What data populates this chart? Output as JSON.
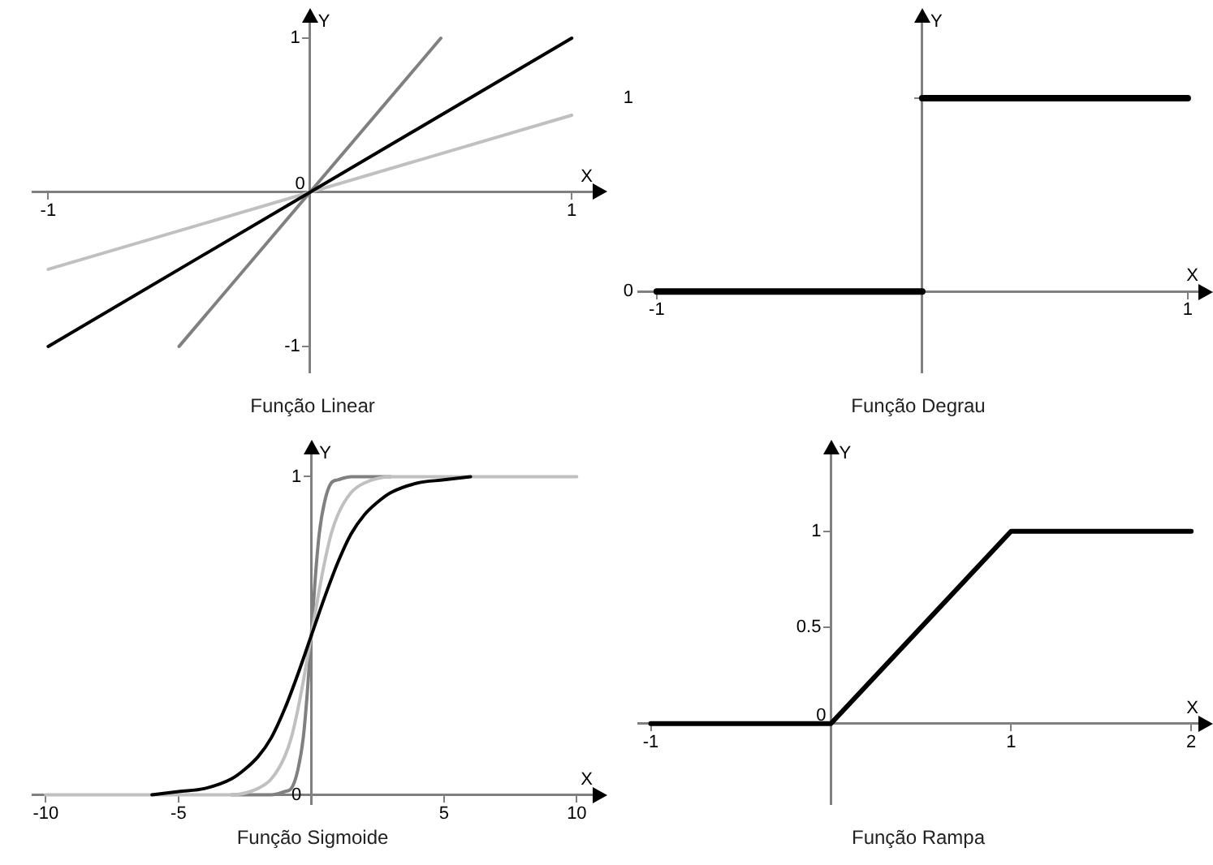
{
  "chart_data": [
    {
      "type": "line",
      "title": "Função Linear",
      "xlabel": "X",
      "ylabel": "Y",
      "xlim": [
        -1.06,
        1.08
      ],
      "ylim": [
        -1.17,
        1.1
      ],
      "xticks": [
        -1,
        1
      ],
      "yticks": [
        -1,
        0,
        1
      ],
      "marker": "none",
      "grid": false,
      "series": [
        {
          "color": "#000000",
          "x": [
            -1,
            1
          ],
          "values": [
            -1,
            1
          ]
        },
        {
          "color": "#808080",
          "x": [
            -0.5,
            0.5
          ],
          "values": [
            -1,
            1
          ]
        },
        {
          "color": "#c0c0c0",
          "x": [
            -1,
            1
          ],
          "values": [
            -0.5,
            0.5
          ]
        }
      ]
    },
    {
      "type": "line",
      "title": "Função Degrau",
      "xlabel": "X",
      "ylabel": "Y",
      "xlim": [
        -1.07,
        1.04
      ],
      "ylim": [
        -0.42,
        1.39
      ],
      "xticks": [
        -1,
        1
      ],
      "yticks": [
        0,
        1
      ],
      "marker": "none",
      "grid": false,
      "series": [
        {
          "color": "#000000",
          "x": [
            -1,
            0
          ],
          "values": [
            0,
            0
          ]
        },
        {
          "color": "#000000",
          "x": [
            0,
            1
          ],
          "values": [
            1,
            1
          ]
        }
      ]
    },
    {
      "type": "line",
      "title": "Função Sigmoide",
      "xlabel": "X",
      "ylabel": "Y",
      "xlim": [
        -10.5,
        10.6
      ],
      "ylim": [
        -0.03,
        1.07
      ],
      "xticks": [
        -10,
        -5,
        5,
        10
      ],
      "yticks": [
        0,
        1
      ],
      "marker": "none",
      "grid": false,
      "series": [
        {
          "color": "#000000",
          "x": [
            -6,
            -5,
            -4,
            -3,
            -2.5,
            -2,
            -1.5,
            -1,
            -0.5,
            0,
            0.5,
            1,
            1.5,
            2,
            2.5,
            3,
            4,
            5,
            6
          ],
          "values": [
            0,
            0.01,
            0.02,
            0.05,
            0.08,
            0.12,
            0.18,
            0.27,
            0.38,
            0.5,
            0.62,
            0.73,
            0.82,
            0.88,
            0.92,
            0.95,
            0.98,
            0.99,
            1
          ]
        },
        {
          "color": "#c0c0c0",
          "x": [
            -10,
            -5,
            -3,
            -2,
            -1.5,
            -1,
            -0.75,
            -0.5,
            -0.25,
            0,
            0.25,
            0.5,
            0.75,
            1,
            1.5,
            2,
            3,
            5,
            10
          ],
          "values": [
            0,
            0,
            0,
            0.02,
            0.05,
            0.12,
            0.18,
            0.27,
            0.38,
            0.5,
            0.62,
            0.73,
            0.82,
            0.88,
            0.95,
            0.98,
            1,
            1,
            1
          ]
        },
        {
          "color": "#808080",
          "x": [
            -3,
            -1.5,
            -1,
            -0.75,
            -0.5,
            -0.3,
            -0.15,
            0,
            0.15,
            0.3,
            0.5,
            0.75,
            1,
            1.5,
            3
          ],
          "values": [
            0,
            0,
            0.01,
            0.02,
            0.08,
            0.18,
            0.32,
            0.5,
            0.68,
            0.82,
            0.92,
            0.98,
            0.99,
            1,
            1
          ]
        }
      ]
    },
    {
      "type": "line",
      "title": "Função Rampa",
      "xlabel": "X",
      "ylabel": "Y",
      "xlim": [
        -1.07,
        2.04
      ],
      "ylim": [
        -0.42,
        1.4
      ],
      "xticks": [
        -1,
        1,
        2
      ],
      "yticks": [
        0,
        0.5,
        1
      ],
      "marker": "none",
      "grid": false,
      "series": [
        {
          "color": "#000000",
          "x": [
            -1,
            0,
            1,
            2
          ],
          "values": [
            0,
            0,
            1,
            1
          ]
        }
      ]
    }
  ]
}
